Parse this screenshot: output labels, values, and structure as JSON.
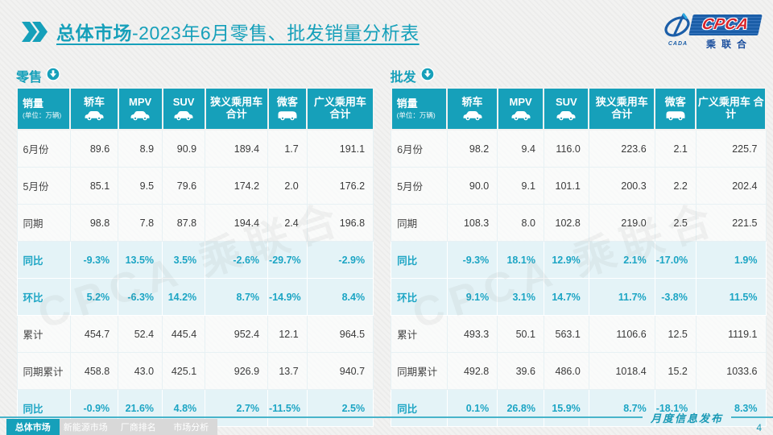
{
  "title": {
    "highlight": "总体市场",
    "rest": "-2023年6月零售、批发销量分析表"
  },
  "logo": {
    "wordmark": "CPCA",
    "subtitle": "乘联合",
    "cada": "CADA"
  },
  "watermark": "CPCA 乘联合",
  "table_header": {
    "first": "销量",
    "unit": "(单位：万辆)",
    "columns": [
      {
        "label": "轿车",
        "icon": "car"
      },
      {
        "label": "MPV",
        "icon": "car"
      },
      {
        "label": "SUV",
        "icon": "car"
      },
      {
        "label": "狭义乘用车 合计"
      },
      {
        "label": "微客",
        "icon": "van"
      },
      {
        "label": "广义乘用车 合计"
      }
    ]
  },
  "sections": [
    {
      "label": "零售",
      "rows": [
        {
          "label": "6月份",
          "type": "num",
          "values": [
            "89.6",
            "8.9",
            "90.9",
            "189.4",
            "1.7",
            "191.1"
          ]
        },
        {
          "label": "5月份",
          "type": "num",
          "values": [
            "85.1",
            "9.5",
            "79.6",
            "174.2",
            "2.0",
            "176.2"
          ]
        },
        {
          "label": "同期",
          "type": "num",
          "values": [
            "98.8",
            "7.8",
            "87.8",
            "194.4",
            "2.4",
            "196.8"
          ]
        },
        {
          "label": "同比",
          "type": "pct",
          "values": [
            "-9.3%",
            "13.5%",
            "3.5%",
            "-2.6%",
            "-29.7%",
            "-2.9%"
          ]
        },
        {
          "label": "环比",
          "type": "pct",
          "values": [
            "5.2%",
            "-6.3%",
            "14.2%",
            "8.7%",
            "-14.9%",
            "8.4%"
          ]
        },
        {
          "label": "累计",
          "type": "num",
          "values": [
            "454.7",
            "52.4",
            "445.4",
            "952.4",
            "12.1",
            "964.5"
          ]
        },
        {
          "label": "同期累计",
          "type": "num",
          "values": [
            "458.8",
            "43.0",
            "425.1",
            "926.9",
            "13.7",
            "940.7"
          ]
        },
        {
          "label": "同比",
          "type": "pct",
          "values": [
            "-0.9%",
            "21.6%",
            "4.8%",
            "2.7%",
            "-11.5%",
            "2.5%"
          ]
        }
      ]
    },
    {
      "label": "批发",
      "rows": [
        {
          "label": "6月份",
          "type": "num",
          "values": [
            "98.2",
            "9.4",
            "116.0",
            "223.6",
            "2.1",
            "225.7"
          ]
        },
        {
          "label": "5月份",
          "type": "num",
          "values": [
            "90.0",
            "9.1",
            "101.1",
            "200.3",
            "2.2",
            "202.4"
          ]
        },
        {
          "label": "同期",
          "type": "num",
          "values": [
            "108.3",
            "8.0",
            "102.8",
            "219.0",
            "2.5",
            "221.5"
          ]
        },
        {
          "label": "同比",
          "type": "pct",
          "values": [
            "-9.3%",
            "18.1%",
            "12.9%",
            "2.1%",
            "-17.0%",
            "1.9%"
          ]
        },
        {
          "label": "环比",
          "type": "pct",
          "values": [
            "9.1%",
            "3.1%",
            "14.7%",
            "11.7%",
            "-3.8%",
            "11.5%"
          ]
        },
        {
          "label": "累计",
          "type": "num",
          "values": [
            "493.3",
            "50.1",
            "563.1",
            "1106.6",
            "12.5",
            "1119.1"
          ]
        },
        {
          "label": "同期累计",
          "type": "num",
          "values": [
            "492.8",
            "39.6",
            "486.0",
            "1018.4",
            "15.2",
            "1033.6"
          ]
        },
        {
          "label": "同比",
          "type": "pct",
          "values": [
            "0.1%",
            "26.8%",
            "15.9%",
            "8.7%",
            "-18.1%",
            "8.3%"
          ]
        }
      ]
    }
  ],
  "footer": {
    "tabs": [
      {
        "label": "总体市场",
        "active": true
      },
      {
        "label": "新能源市场",
        "active": false
      },
      {
        "label": "厂商排名",
        "active": false
      },
      {
        "label": "市场分析",
        "active": false
      }
    ],
    "publish_label": "月度信息发布",
    "page_number": "4"
  },
  "colors": {
    "accent_teal": "#16A0BA",
    "percent_text": "#1CA5C4",
    "logo_blue": "#1B5EA8",
    "logo_red": "#D8232A",
    "tab_gray": "#D8D8D8"
  }
}
